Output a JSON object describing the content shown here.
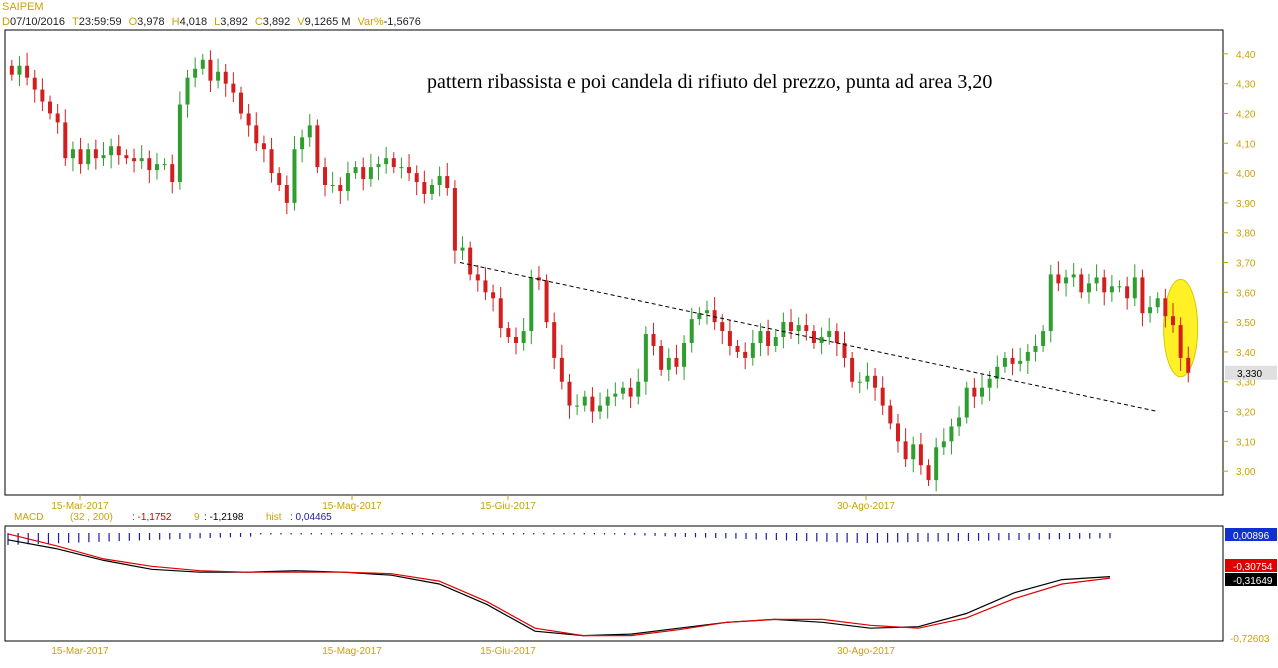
{
  "header": {
    "symbol": "SAIPEM",
    "fields": [
      {
        "k": "D",
        "v": "07/10/2016"
      },
      {
        "k": "T",
        "v": "23:59:59"
      },
      {
        "k": "O",
        "v": "3,978"
      },
      {
        "k": "H",
        "v": "4,018"
      },
      {
        "k": "L",
        "v": "3,892"
      },
      {
        "k": "C",
        "v": "3,892"
      },
      {
        "k": "V",
        "v": "9,1265 M"
      },
      {
        "k": "Var%",
        "v": "-1,5676"
      }
    ]
  },
  "annotation": "pattern ribassista e poi candela di rifiuto del prezzo, punta ad area 3,20",
  "colors": {
    "up": "#2e9e2e",
    "down": "#d21e1e",
    "trendline": "#000000",
    "highlight": "#ffee00",
    "macd": "#000000",
    "signal": "#e00000",
    "hist": "#1a1aaa",
    "axis": "#c9a200"
  },
  "chart_data": [
    {
      "type": "candlestick",
      "ylim": [
        2.92,
        4.48
      ],
      "y_ticks": [
        "4,40",
        "4,30",
        "4,20",
        "4,10",
        "4,00",
        "3,90",
        "3,80",
        "3,70",
        "3,60",
        "3,50",
        "3,40",
        "3,30",
        "3,20",
        "3,10",
        "3,00"
      ],
      "x_ticks": [
        "15-Mar-2017",
        "15-Mag-2017",
        "15-Giu-2017",
        "30-Ago-2017"
      ],
      "last_price_label": "3,330",
      "last_price": 3.33,
      "close_series": [
        4.33,
        4.36,
        4.32,
        4.28,
        4.24,
        4.2,
        4.17,
        4.05,
        4.08,
        4.03,
        4.08,
        4.05,
        4.06,
        4.09,
        4.06,
        4.05,
        4.04,
        4.05,
        4.01,
        4.03,
        4.03,
        3.97,
        4.23,
        4.32,
        4.35,
        4.38,
        4.31,
        4.34,
        4.3,
        4.27,
        4.2,
        4.16,
        4.1,
        4.08,
        4.0,
        3.96,
        3.9,
        4.08,
        4.12,
        4.16,
        4.02,
        3.96,
        3.96,
        3.94,
        4.0,
        4.02,
        3.98,
        4.02,
        4.03,
        4.05,
        4.02,
        4.02,
        4.0,
        3.97,
        3.93,
        3.96,
        3.99,
        3.95,
        3.74,
        3.75,
        3.66,
        3.64,
        3.6,
        3.58,
        3.48,
        3.45,
        3.43,
        3.47,
        3.65,
        3.64,
        3.5,
        3.38,
        3.3,
        3.22,
        3.22,
        3.25,
        3.2,
        3.22,
        3.25,
        3.26,
        3.28,
        3.25,
        3.3,
        3.46,
        3.42,
        3.34,
        3.38,
        3.35,
        3.43,
        3.51,
        3.53,
        3.54,
        3.5,
        3.47,
        3.42,
        3.4,
        3.38,
        3.43,
        3.47,
        3.42,
        3.45,
        3.5,
        3.47,
        3.49,
        3.47,
        3.43,
        3.45,
        3.47,
        3.43,
        3.38,
        3.3,
        3.3,
        3.32,
        3.28,
        3.22,
        3.16,
        3.1,
        3.04,
        3.09,
        3.02,
        2.97,
        3.08,
        3.1,
        3.15,
        3.18,
        3.28,
        3.25,
        3.28,
        3.31,
        3.35,
        3.38,
        3.36,
        3.37,
        3.4,
        3.42,
        3.47,
        3.66,
        3.63,
        3.65,
        3.66,
        3.6,
        3.63,
        3.65,
        3.6,
        3.62,
        3.62,
        3.58,
        3.65,
        3.53,
        3.55,
        3.58,
        3.52,
        3.49,
        3.38,
        3.33
      ],
      "trendline": [
        {
          "x": "15-Giu-2017",
          "y": 3.7
        },
        {
          "x": "end",
          "y": 3.2
        }
      ]
    },
    {
      "type": "line",
      "title": "MACD",
      "params": "(32 , 200)",
      "macd_label": ": -1,1752",
      "signal_period": "9",
      "signal_label": ": -1,2198",
      "hist_label": "hist",
      "hist_value": ": 0,04465",
      "right_labels": [
        "0,00896",
        "-0,30754",
        "-0,31649"
      ],
      "bottom_label": "-0,72603",
      "ylim": [
        -0.74,
        0.02
      ],
      "x_ticks": [
        "15-Mar-2017",
        "15-Mag-2017",
        "15-Giu-2017",
        "30-Ago-2017"
      ],
      "series": [
        {
          "values": [
            -0.06,
            -0.12,
            -0.2,
            -0.26,
            -0.28,
            -0.28,
            -0.27,
            -0.28,
            -0.3,
            -0.36,
            -0.5,
            -0.68,
            -0.71,
            -0.7,
            -0.66,
            -0.62,
            -0.6,
            -0.62,
            -0.66,
            -0.65,
            -0.56,
            -0.42,
            -0.33,
            -0.31
          ]
        },
        {
          "values": [
            -0.02,
            -0.1,
            -0.19,
            -0.24,
            -0.27,
            -0.28,
            -0.28,
            -0.28,
            -0.29,
            -0.34,
            -0.48,
            -0.66,
            -0.71,
            -0.71,
            -0.67,
            -0.62,
            -0.6,
            -0.6,
            -0.64,
            -0.66,
            -0.59,
            -0.46,
            -0.36,
            -0.32
          ]
        }
      ]
    }
  ]
}
